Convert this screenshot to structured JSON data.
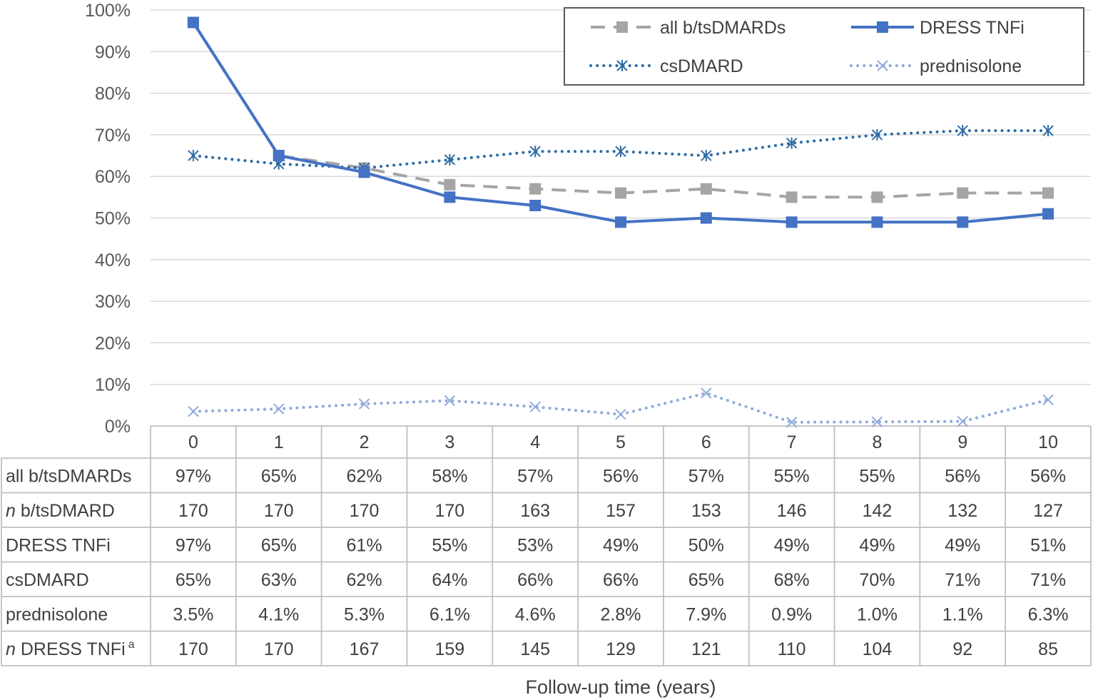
{
  "chart_data": {
    "type": "line",
    "title": "",
    "xlabel": "Follow-up time (years)",
    "ylabel": "",
    "ylim": [
      0,
      100
    ],
    "y_ticks": [
      "0%",
      "10%",
      "20%",
      "30%",
      "40%",
      "50%",
      "60%",
      "70%",
      "80%",
      "90%",
      "100%"
    ],
    "categories": [
      "0",
      "1",
      "2",
      "3",
      "4",
      "5",
      "6",
      "7",
      "8",
      "9",
      "10"
    ],
    "grid": true,
    "legend_position": "top-right",
    "series": [
      {
        "name": "all b/tsDMARDs",
        "values": [
          97,
          65,
          62,
          58,
          57,
          56,
          57,
          55,
          55,
          56,
          56
        ],
        "color": "#a5a5a5",
        "marker": "square",
        "line": "dashed"
      },
      {
        "name": "DRESS TNFi",
        "values": [
          97,
          65,
          61,
          55,
          53,
          49,
          50,
          49,
          49,
          49,
          51
        ],
        "color": "#4472c4",
        "marker": "square",
        "line": "solid"
      },
      {
        "name": "csDMARD",
        "values": [
          65,
          63,
          62,
          64,
          66,
          66,
          65,
          68,
          70,
          71,
          71
        ],
        "color": "#2e6ca4",
        "marker": "asterisk",
        "line": "dotted"
      },
      {
        "name": "prednisolone",
        "values": [
          3.5,
          4.1,
          5.3,
          6.1,
          4.6,
          2.8,
          7.9,
          0.9,
          1.0,
          1.1,
          6.3
        ],
        "color": "#8faadc",
        "marker": "x",
        "line": "dotted"
      }
    ],
    "table": {
      "rows": [
        {
          "label": "all b/tsDMARDs",
          "italic_prefix": "",
          "superscript": "",
          "cells": [
            "97%",
            "65%",
            "62%",
            "58%",
            "57%",
            "56%",
            "57%",
            "55%",
            "55%",
            "56%",
            "56%"
          ]
        },
        {
          "label": " b/tsDMARD",
          "italic_prefix": "n",
          "superscript": "",
          "cells": [
            "170",
            "170",
            "170",
            "170",
            "163",
            "157",
            "153",
            "146",
            "142",
            "132",
            "127"
          ]
        },
        {
          "label": "DRESS TNFi",
          "italic_prefix": "",
          "superscript": "",
          "cells": [
            "97%",
            "65%",
            "61%",
            "55%",
            "53%",
            "49%",
            "50%",
            "49%",
            "49%",
            "49%",
            "51%"
          ]
        },
        {
          "label": "csDMARD",
          "italic_prefix": "",
          "superscript": "",
          "cells": [
            "65%",
            "63%",
            "62%",
            "64%",
            "66%",
            "66%",
            "65%",
            "68%",
            "70%",
            "71%",
            "71%"
          ]
        },
        {
          "label": "prednisolone",
          "italic_prefix": "",
          "superscript": "",
          "cells": [
            "3.5%",
            "4.1%",
            "5.3%",
            "6.1%",
            "4.6%",
            "2.8%",
            "7.9%",
            "0.9%",
            "1.0%",
            "1.1%",
            "6.3%"
          ]
        },
        {
          "label": " DRESS TNFi",
          "italic_prefix": "n",
          "superscript": "a",
          "cells": [
            "170",
            "170",
            "167",
            "159",
            "145",
            "129",
            "121",
            "110",
            "104",
            "92",
            "85"
          ]
        }
      ]
    }
  }
}
